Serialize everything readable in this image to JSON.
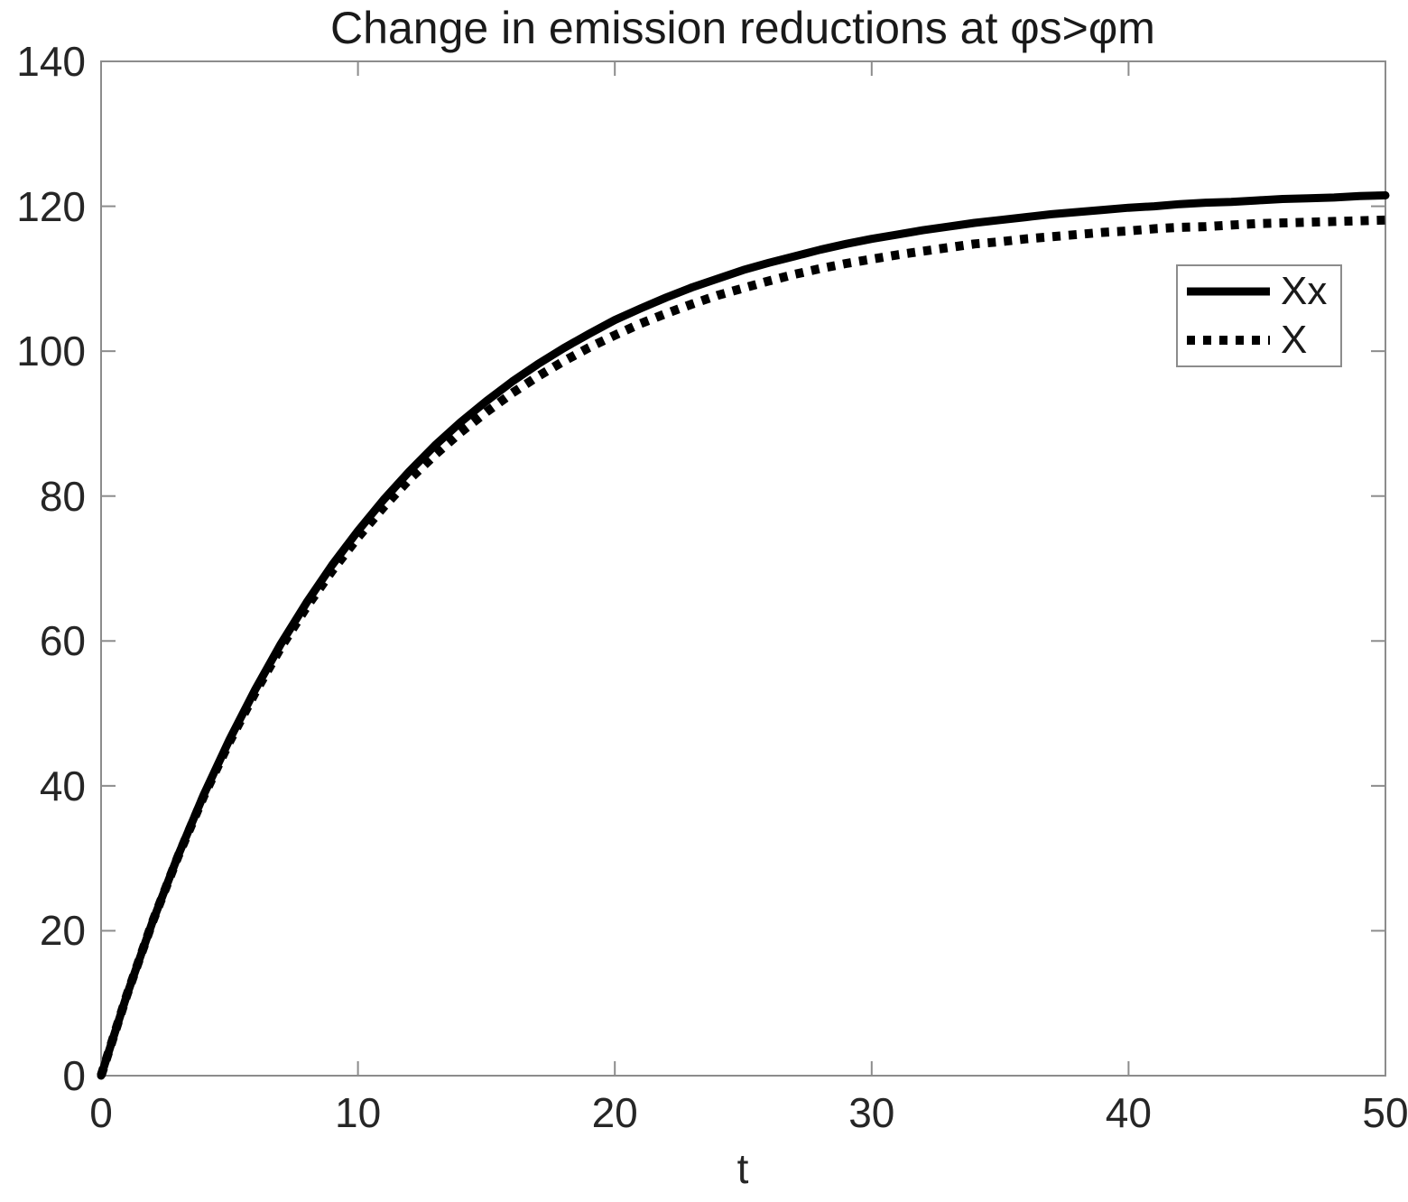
{
  "chart_data": {
    "type": "line",
    "title": "Change in emission reductions at φs>φm",
    "xlabel": "t",
    "ylabel": "",
    "xlim": [
      0,
      50
    ],
    "ylim": [
      0,
      140
    ],
    "x_ticks": [
      0,
      10,
      20,
      30,
      40,
      50
    ],
    "y_ticks": [
      0,
      20,
      40,
      60,
      80,
      100,
      120,
      140
    ],
    "grid": false,
    "legend_position": "upper right",
    "x": [
      0,
      1,
      2,
      3,
      4,
      5,
      6,
      7,
      8,
      9,
      10,
      11,
      12,
      13,
      14,
      15,
      16,
      17,
      18,
      19,
      20,
      21,
      22,
      23,
      24,
      25,
      26,
      27,
      28,
      29,
      30,
      31,
      32,
      33,
      34,
      35,
      36,
      37,
      38,
      39,
      40,
      41,
      42,
      43,
      44,
      45,
      46,
      47,
      48,
      49,
      50
    ],
    "series": [
      {
        "name": "Xx",
        "style": "solid",
        "color": "#000000",
        "values": [
          0,
          11.1,
          21.2,
          30.4,
          38.8,
          46.4,
          53.3,
          59.6,
          65.3,
          70.5,
          75.2,
          79.5,
          83.4,
          87.0,
          90.2,
          93.1,
          95.8,
          98.2,
          100.4,
          102.4,
          104.3,
          105.9,
          107.4,
          108.8,
          110.0,
          111.2,
          112.2,
          113.1,
          114.0,
          114.8,
          115.5,
          116.1,
          116.7,
          117.2,
          117.7,
          118.1,
          118.5,
          118.9,
          119.2,
          119.5,
          119.8,
          120.0,
          120.3,
          120.5,
          120.6,
          120.8,
          121.0,
          121.1,
          121.2,
          121.4,
          121.5
        ]
      },
      {
        "name": "X",
        "style": "dotted",
        "color": "#000000",
        "values": [
          0,
          11.1,
          21.2,
          30.3,
          38.6,
          46.1,
          52.9,
          59.1,
          64.7,
          69.7,
          74.3,
          78.5,
          82.3,
          85.7,
          88.8,
          91.6,
          94.2,
          96.5,
          98.6,
          100.5,
          102.2,
          103.8,
          105.2,
          106.5,
          107.7,
          108.7,
          109.7,
          110.6,
          111.4,
          112.1,
          112.7,
          113.3,
          113.8,
          114.3,
          114.8,
          115.1,
          115.5,
          115.8,
          116.1,
          116.4,
          116.6,
          116.9,
          117.1,
          117.2,
          117.4,
          117.6,
          117.7,
          117.8,
          117.9,
          118.0,
          118.1
        ]
      }
    ]
  },
  "colors": {
    "background": "#ffffff",
    "axis_box": "#8c8c8c",
    "tick_label": "#262626",
    "curve": "#000000"
  }
}
